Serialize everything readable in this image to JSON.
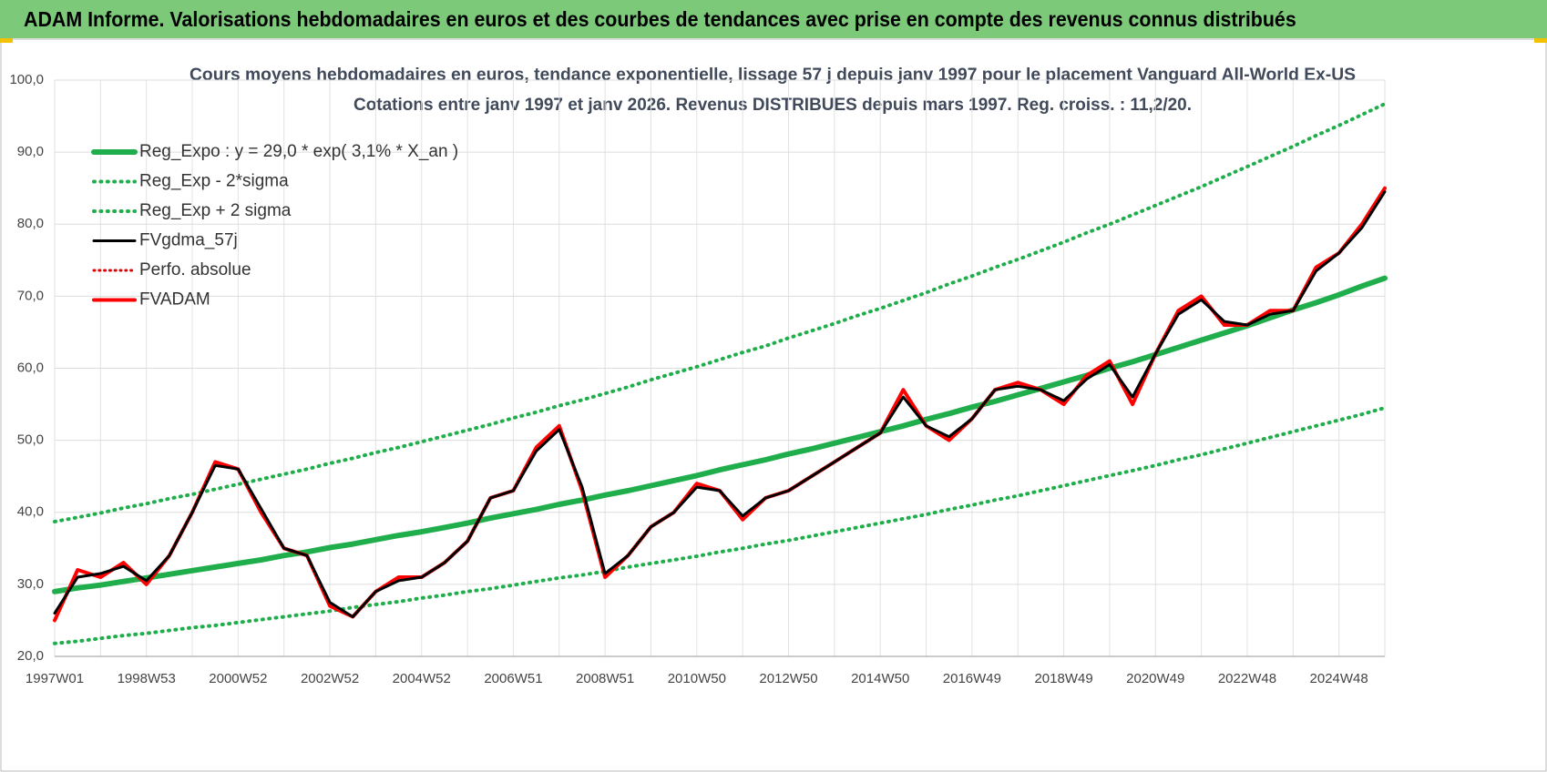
{
  "header": {
    "title": "ADAM Informe. Valorisations hebdomadaires en euros et des courbes de tendances avec prise en compte des revenus connus distribués"
  },
  "chart_data": {
    "type": "line",
    "title": "Cours moyens hebdomadaires en euros, tendance exponentielle, lissage 57 j depuis janv 1997 pour le placement Vanguard All-World Ex-US",
    "subtitle": "Cotations entre janv 1997 et janv 2026. Revenus DISTRIBUES depuis mars 1997. Reg. croiss. : 11,2/20.",
    "categories": [
      "1997W01",
      null,
      null,
      null,
      "1998W53",
      null,
      null,
      null,
      "2000W52",
      null,
      null,
      null,
      "2002W52",
      null,
      null,
      null,
      "2004W52",
      null,
      null,
      null,
      "2006W51",
      null,
      null,
      null,
      "2008W51",
      null,
      null,
      null,
      "2010W50",
      null,
      null,
      null,
      "2012W50",
      null,
      null,
      null,
      "2014W50",
      null,
      null,
      null,
      "2016W49",
      null,
      null,
      null,
      "2018W49",
      null,
      null,
      null,
      "2020W49",
      null,
      null,
      null,
      "2022W48",
      null,
      null,
      null,
      "2024W48",
      null,
      null
    ],
    "ylim": [
      20,
      100
    ],
    "yticks": [
      {
        "value": 20,
        "label": "20,0"
      },
      {
        "value": 30,
        "label": "30,0"
      },
      {
        "value": 40,
        "label": "40,0"
      },
      {
        "value": 50,
        "label": "50,0"
      },
      {
        "value": 60,
        "label": "60,0"
      },
      {
        "value": 70,
        "label": "70,0"
      },
      {
        "value": 80,
        "label": "80,0"
      },
      {
        "value": 90,
        "label": "90,0"
      },
      {
        "value": 100,
        "label": "100,0"
      }
    ],
    "grid": true,
    "legend": "upper left",
    "series": [
      {
        "name": "Reg_Expo : y = 29,0 * exp( 3,1% *  X_an )",
        "color": "#1fae4b",
        "style": "solid",
        "width": 6,
        "values": [
          29.0,
          29.5,
          29.9,
          30.4,
          30.9,
          31.4,
          31.9,
          32.4,
          32.9,
          33.4,
          34.0,
          34.5,
          35.1,
          35.6,
          36.2,
          36.8,
          37.3,
          37.9,
          38.5,
          39.2,
          39.8,
          40.4,
          41.1,
          41.7,
          42.4,
          43.0,
          43.7,
          44.4,
          45.1,
          45.9,
          46.6,
          47.3,
          48.1,
          48.8,
          49.6,
          50.4,
          51.2,
          52.0,
          52.9,
          53.7,
          54.6,
          55.4,
          56.3,
          57.2,
          58.1,
          59.0,
          60.0,
          60.9,
          61.9,
          62.9,
          63.9,
          64.9,
          65.9,
          67.0,
          68.1,
          69.1,
          70.2,
          71.4,
          72.5
        ]
      },
      {
        "name": "Reg_Exp - 2*sigma",
        "color": "#1fae4b",
        "style": "dotted",
        "width": 4,
        "values": [
          21.8,
          22.1,
          22.5,
          22.9,
          23.2,
          23.6,
          24.0,
          24.3,
          24.7,
          25.1,
          25.5,
          25.9,
          26.3,
          26.8,
          27.2,
          27.6,
          28.1,
          28.5,
          29.0,
          29.4,
          29.9,
          30.4,
          30.9,
          31.3,
          31.8,
          32.4,
          32.9,
          33.4,
          33.9,
          34.5,
          35.0,
          35.6,
          36.1,
          36.7,
          37.3,
          37.9,
          38.5,
          39.1,
          39.7,
          40.4,
          41.0,
          41.7,
          42.3,
          43.0,
          43.7,
          44.4,
          45.1,
          45.8,
          46.5,
          47.3,
          48.0,
          48.8,
          49.6,
          50.4,
          51.2,
          52.0,
          52.8,
          53.6,
          54.5
        ]
      },
      {
        "name": "Reg_Exp + 2 sigma",
        "color": "#1fae4b",
        "style": "dotted",
        "width": 4,
        "values": [
          38.7,
          39.3,
          39.9,
          40.6,
          41.2,
          41.9,
          42.5,
          43.2,
          43.9,
          44.6,
          45.3,
          46.0,
          46.8,
          47.5,
          48.3,
          49.0,
          49.8,
          50.6,
          51.4,
          52.2,
          53.1,
          53.9,
          54.8,
          55.6,
          56.5,
          57.4,
          58.4,
          59.3,
          60.2,
          61.2,
          62.2,
          63.1,
          64.2,
          65.2,
          66.2,
          67.3,
          68.3,
          69.4,
          70.5,
          71.7,
          72.8,
          74.0,
          75.1,
          76.3,
          77.5,
          78.8,
          80.0,
          81.3,
          82.6,
          83.9,
          85.2,
          86.6,
          88.0,
          89.4,
          90.8,
          92.3,
          93.7,
          95.2,
          96.7
        ]
      },
      {
        "name": "FVgdma_57j",
        "color": "#000000",
        "style": "solid",
        "width": 3,
        "values": [
          26,
          31,
          31.5,
          32.5,
          30.5,
          34,
          40,
          46.5,
          46,
          40.5,
          35,
          34,
          27.5,
          25.5,
          29,
          30.5,
          31,
          33,
          36,
          42,
          43,
          48.5,
          51.5,
          43.5,
          31.5,
          34,
          38,
          40,
          43.5,
          43,
          39.5,
          42,
          43,
          45,
          47,
          49,
          51,
          56,
          52,
          50.5,
          53,
          57,
          57.5,
          57,
          55.5,
          58.5,
          60.5,
          56,
          62,
          67.5,
          69.5,
          66.5,
          66,
          67.5,
          68,
          73.5,
          76,
          79.5,
          84.5
        ]
      },
      {
        "name": "Perfo. absolue",
        "color": "#e00000",
        "style": "dotted",
        "width": 3,
        "values": [
          25,
          32,
          31,
          33,
          30,
          34,
          40,
          47,
          46,
          40,
          35,
          34,
          27,
          25.5,
          29,
          31,
          31,
          33,
          36,
          42,
          43,
          49,
          52,
          43,
          31,
          34,
          38,
          40,
          44,
          43,
          39,
          42,
          43,
          45,
          47,
          49,
          51,
          57,
          52,
          50,
          53,
          57,
          58,
          57,
          55,
          59,
          61,
          55,
          62,
          68,
          70,
          66,
          66,
          68,
          68,
          74,
          76,
          80,
          85
        ]
      },
      {
        "name": "FVADAM",
        "color": "#ff0000",
        "style": "solid",
        "width": 4,
        "values": [
          25,
          32,
          31,
          33,
          30,
          34,
          40,
          47,
          46,
          40,
          35,
          34,
          27,
          25.5,
          29,
          31,
          31,
          33,
          36,
          42,
          43,
          49,
          52,
          43,
          31,
          34,
          38,
          40,
          44,
          43,
          39,
          42,
          43,
          45,
          47,
          49,
          51,
          57,
          52,
          50,
          53,
          57,
          58,
          57,
          55,
          59,
          61,
          55,
          62,
          68,
          70,
          66,
          66,
          68,
          68,
          74,
          76,
          80,
          85
        ]
      }
    ]
  }
}
